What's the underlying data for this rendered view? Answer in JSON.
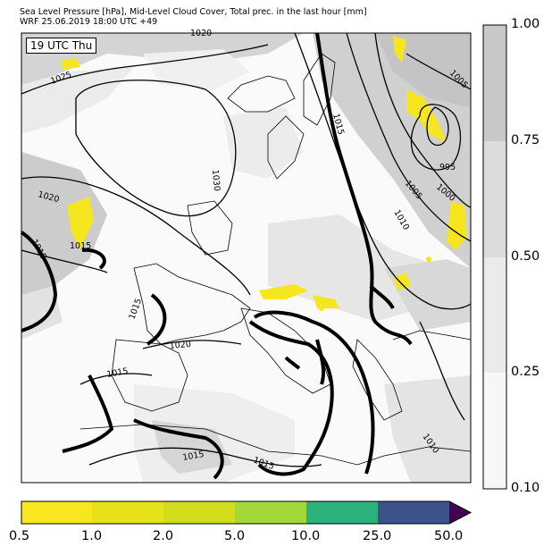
{
  "header": {
    "line1": "Sea Level Pressure [hPa], Mid-Level Cloud Cover, Total prec. in the last hour [mm]",
    "line2": "WRF 25.06.2019 18:00 UTC +49"
  },
  "map": {
    "time_label": "19 UTC Thu",
    "isobar_labels": [
      "1020",
      "1025",
      "1030",
      "1020",
      "1015",
      "1015",
      "1015",
      "1020",
      "1015",
      "1015",
      "1015",
      "1015",
      "1005",
      "1010",
      "1005",
      "1000",
      "995",
      "1005",
      "1010"
    ],
    "colors": {
      "cloud_full": "#c8c8c8",
      "cloud_mid": "#dcdcdc",
      "cloud_low": "#ebebeb",
      "cloud_min": "#f5f5f5",
      "precip": "#f5e620",
      "coast": "#000000"
    }
  },
  "cloud_colorbar": {
    "ticks": [
      "1.00",
      "0.75",
      "0.50",
      "0.25",
      "0.10"
    ],
    "colors": [
      "#c8c8c8",
      "#dcdcdc",
      "#ebebeb",
      "#f7f7f7"
    ]
  },
  "precip_colorbar": {
    "ticks": [
      "0.5",
      "1.0",
      "2.0",
      "5.0",
      "10.0",
      "25.0",
      "50.0"
    ],
    "colors": [
      "#f8e621",
      "#e6e119",
      "#d2de1c",
      "#a4d838",
      "#2db27d",
      "#3b528b",
      "#440154"
    ]
  }
}
